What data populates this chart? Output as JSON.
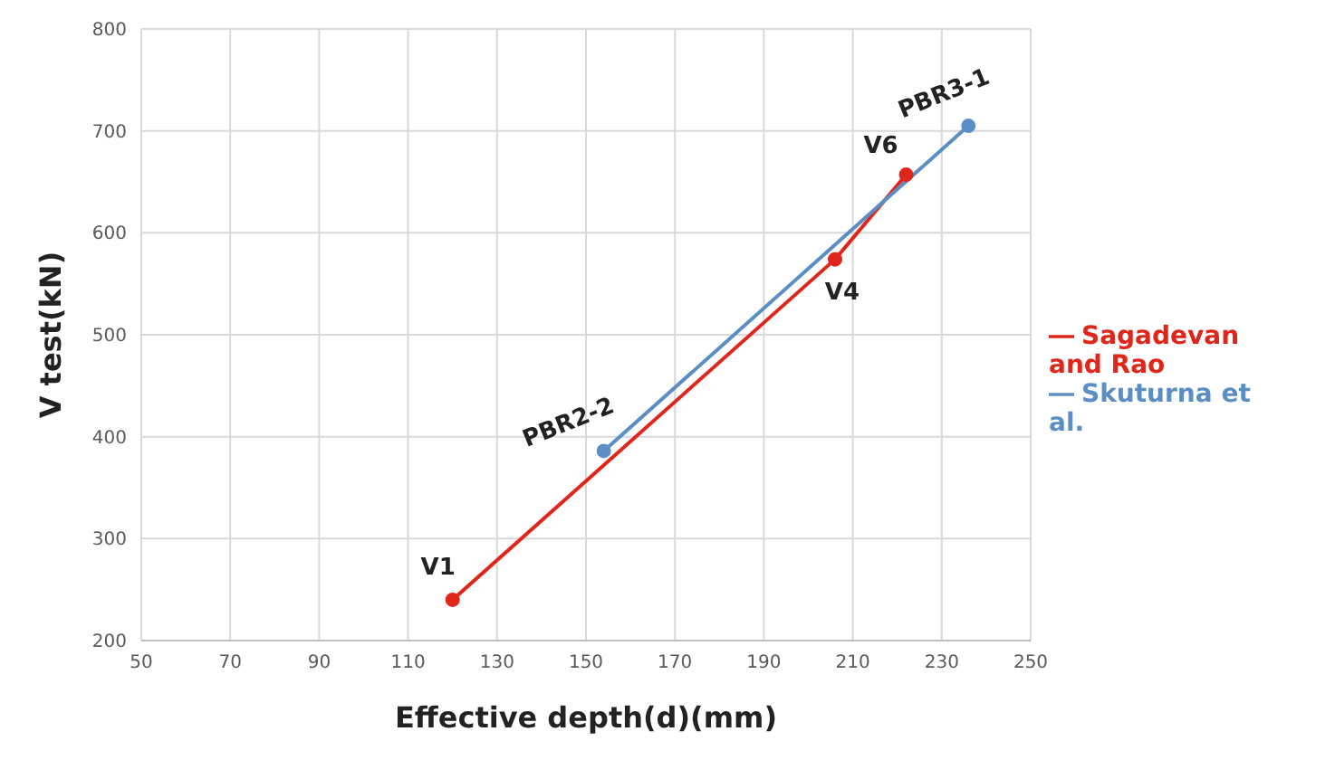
{
  "chart_data": {
    "type": "line",
    "xlabel": "Effective depth(d)(mm)",
    "ylabel": "V test(kN)",
    "xlim": [
      50,
      250
    ],
    "xticks": [
      50,
      70,
      90,
      110,
      130,
      150,
      170,
      190,
      210,
      230,
      250
    ],
    "ylim": [
      200,
      800
    ],
    "yticks": [
      200,
      300,
      400,
      500,
      600,
      700,
      800
    ],
    "grid": true,
    "legend": "right",
    "marker": "circle",
    "line_style": "solid",
    "series": [
      {
        "name": "Sagadevan and Rao",
        "color": "#e0261b",
        "x": [
          120,
          206,
          222
        ],
        "values": [
          240,
          574,
          657
        ]
      },
      {
        "name": "Skuturna et al.",
        "color": "#5b8ec4",
        "x": [
          154,
          236
        ],
        "values": [
          386,
          705
        ]
      }
    ],
    "annotations": [
      {
        "text": "V1",
        "x": 120,
        "y": 240
      },
      {
        "text": "V4",
        "x": 206,
        "y": 574
      },
      {
        "text": "V6",
        "x": 222,
        "y": 657
      },
      {
        "text": "PBR2-2",
        "x": 154,
        "y": 386
      },
      {
        "text": "PBR3-1",
        "x": 236,
        "y": 705
      }
    ]
  }
}
